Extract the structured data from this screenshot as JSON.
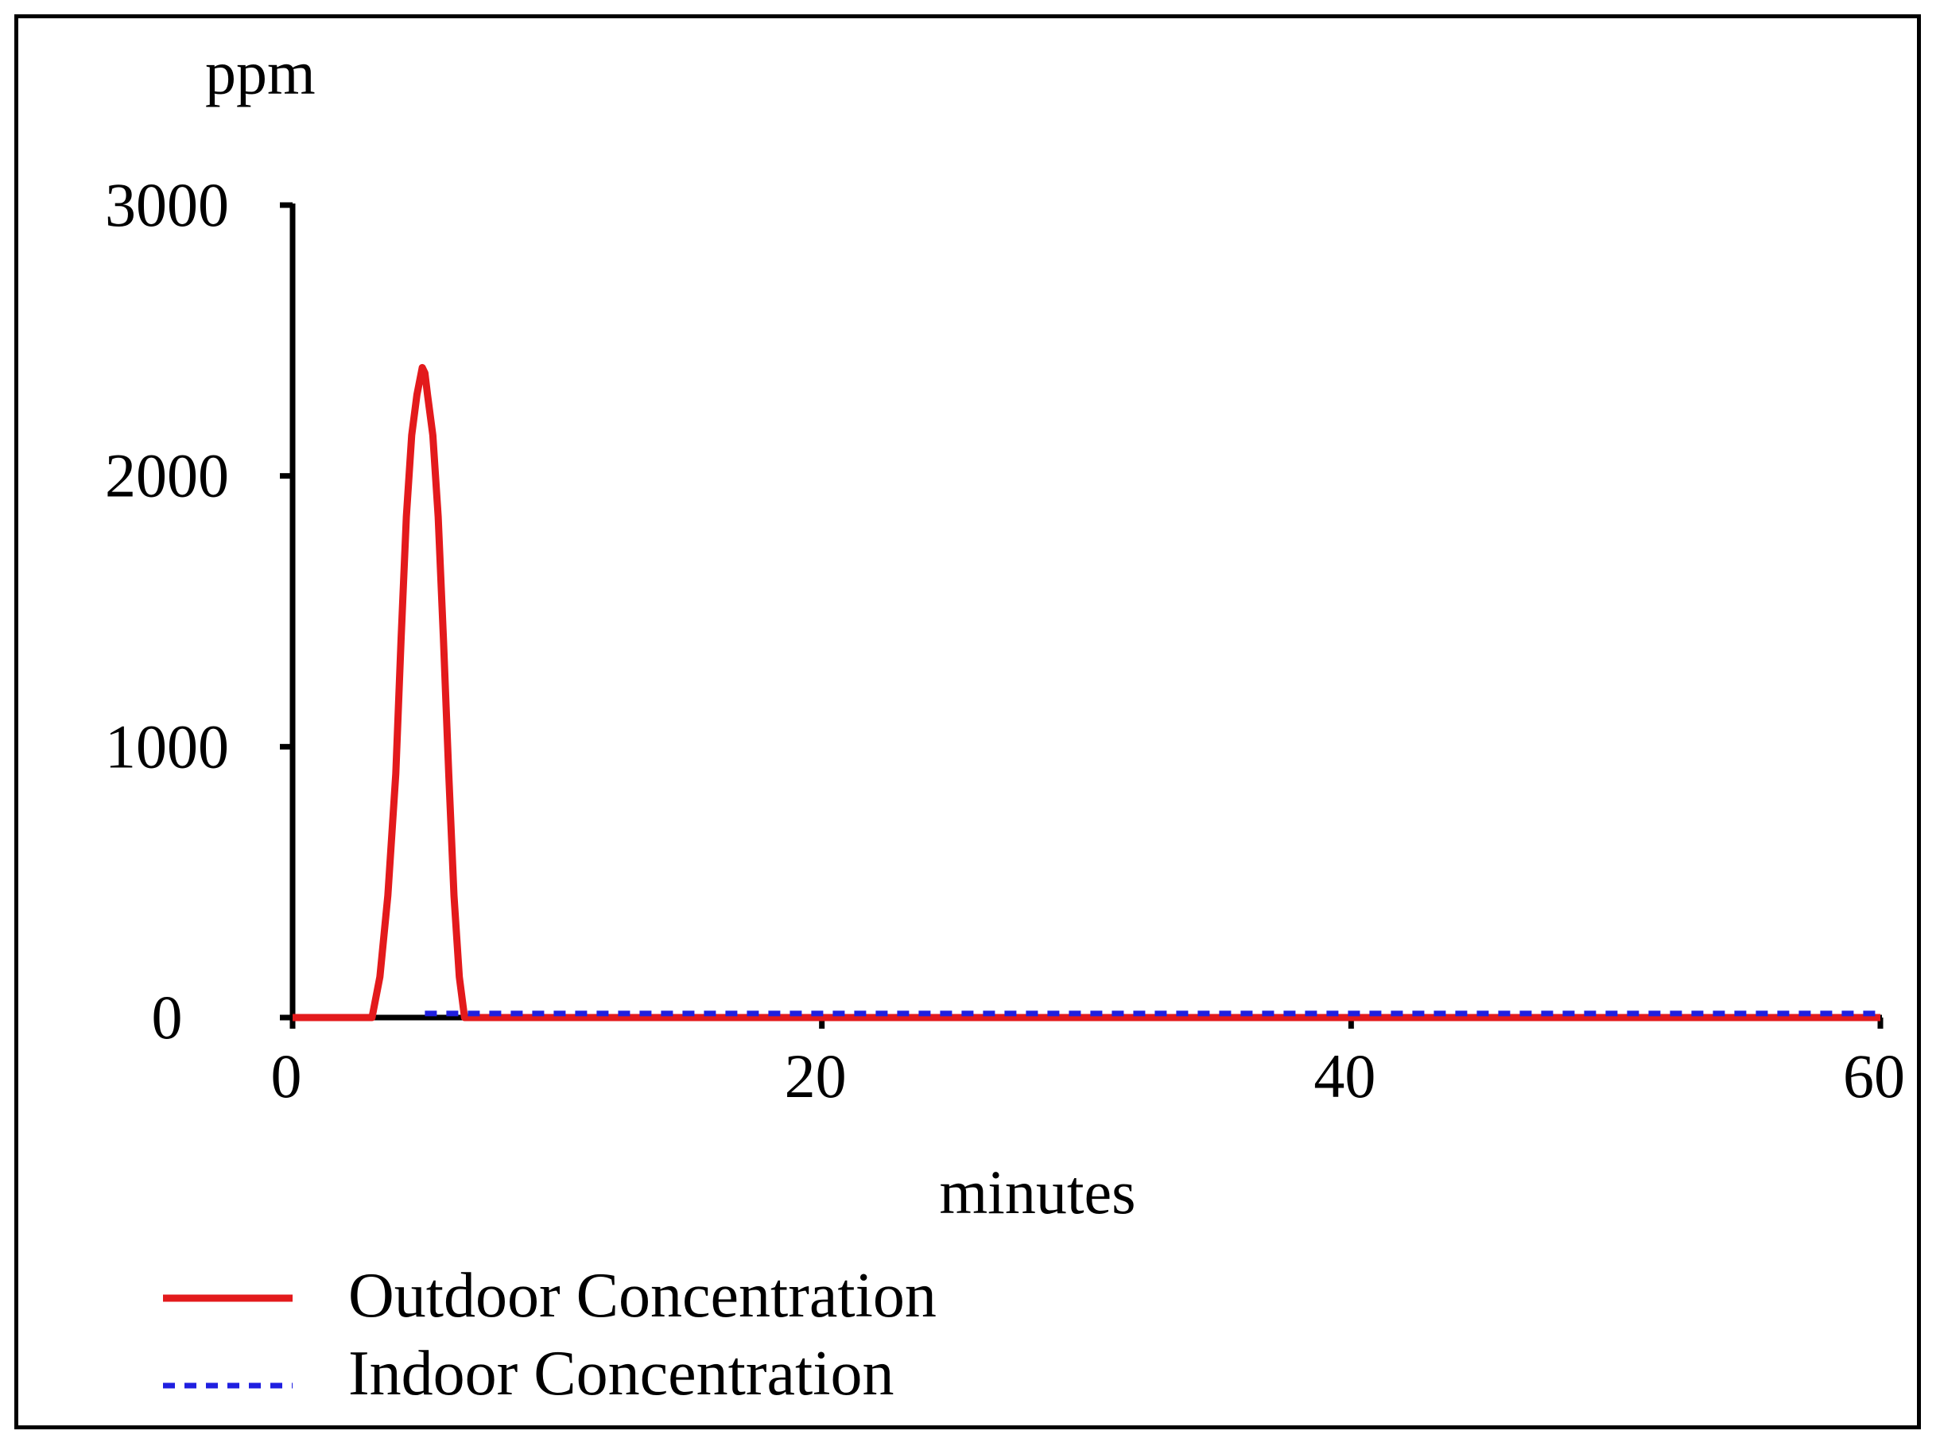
{
  "chart_data": {
    "type": "line",
    "ylabel": "ppm",
    "xlabel": "minutes",
    "xlim": [
      0,
      60
    ],
    "ylim": [
      0,
      3000
    ],
    "x_ticks": [
      0,
      20,
      40,
      60
    ],
    "y_ticks": [
      0,
      1000,
      2000,
      3000
    ],
    "grid": false,
    "legend_position": "bottom-left",
    "series": [
      {
        "name": "Outdoor Concentration",
        "color": "#e31a1c",
        "style": "solid",
        "x": [
          0,
          3.0,
          3.3,
          3.6,
          3.9,
          4.1,
          4.3,
          4.5,
          4.7,
          4.9,
          5.0,
          5.1,
          5.3,
          5.5,
          5.7,
          5.9,
          6.1,
          6.3,
          6.5,
          60
        ],
        "y": [
          0,
          0,
          150,
          450,
          900,
          1400,
          1850,
          2150,
          2300,
          2400,
          2380,
          2300,
          2150,
          1850,
          1400,
          900,
          450,
          150,
          0,
          0
        ]
      },
      {
        "name": "Indoor Concentration",
        "color": "#1f1fe0",
        "style": "dashed",
        "x": [
          5,
          60
        ],
        "y": [
          15,
          15
        ]
      }
    ]
  }
}
